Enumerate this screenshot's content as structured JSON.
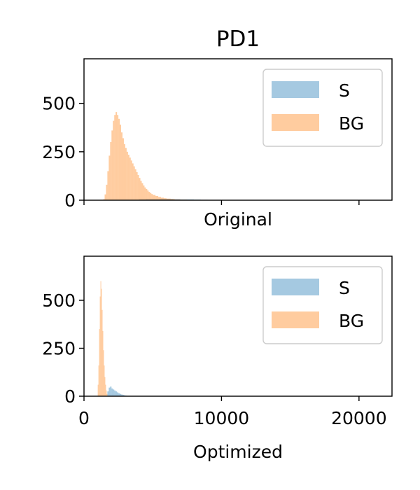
{
  "title": "PD1",
  "chart_data": [
    {
      "type": "histogram",
      "xlabel": "Original",
      "ylabel": "",
      "xlim": [
        0,
        22400
      ],
      "ylim": [
        0,
        730
      ],
      "yticks": [
        0,
        250,
        500
      ],
      "ytick_labels": [
        "0",
        "250",
        "500"
      ],
      "xticks": [
        0,
        10000,
        20000
      ],
      "xtick_labels": [
        "",
        "",
        ""
      ],
      "legend": {
        "position": "top-right",
        "entries": [
          "S",
          "BG"
        ]
      },
      "series": [
        {
          "name": "S",
          "color": "#1f77b4",
          "bins": [
            {
              "x": 4000,
              "y": 4
            },
            {
              "x": 4500,
              "y": 5
            },
            {
              "x": 5000,
              "y": 5
            },
            {
              "x": 5500,
              "y": 6
            },
            {
              "x": 6000,
              "y": 6
            },
            {
              "x": 6500,
              "y": 5
            },
            {
              "x": 7000,
              "y": 4
            },
            {
              "x": 7500,
              "y": 4
            },
            {
              "x": 8000,
              "y": 3
            },
            {
              "x": 8500,
              "y": 2
            },
            {
              "x": 9000,
              "y": 1
            }
          ]
        },
        {
          "name": "BG",
          "color": "#ff7f0e",
          "bins": [
            {
              "x": 1400,
              "y": 5
            },
            {
              "x": 1500,
              "y": 30
            },
            {
              "x": 1600,
              "y": 80
            },
            {
              "x": 1700,
              "y": 150
            },
            {
              "x": 1800,
              "y": 230
            },
            {
              "x": 1900,
              "y": 300
            },
            {
              "x": 2000,
              "y": 360
            },
            {
              "x": 2100,
              "y": 410
            },
            {
              "x": 2200,
              "y": 440
            },
            {
              "x": 2300,
              "y": 455
            },
            {
              "x": 2400,
              "y": 440
            },
            {
              "x": 2500,
              "y": 420
            },
            {
              "x": 2600,
              "y": 390
            },
            {
              "x": 2700,
              "y": 350
            },
            {
              "x": 2800,
              "y": 320
            },
            {
              "x": 2900,
              "y": 290
            },
            {
              "x": 3000,
              "y": 270
            },
            {
              "x": 3100,
              "y": 250
            },
            {
              "x": 3200,
              "y": 235
            },
            {
              "x": 3300,
              "y": 220
            },
            {
              "x": 3400,
              "y": 205
            },
            {
              "x": 3500,
              "y": 190
            },
            {
              "x": 3600,
              "y": 175
            },
            {
              "x": 3700,
              "y": 160
            },
            {
              "x": 3800,
              "y": 145
            },
            {
              "x": 3900,
              "y": 130
            },
            {
              "x": 4000,
              "y": 115
            },
            {
              "x": 4100,
              "y": 100
            },
            {
              "x": 4200,
              "y": 88
            },
            {
              "x": 4300,
              "y": 76
            },
            {
              "x": 4400,
              "y": 66
            },
            {
              "x": 4500,
              "y": 58
            },
            {
              "x": 4600,
              "y": 50
            },
            {
              "x": 4700,
              "y": 43
            },
            {
              "x": 4800,
              "y": 37
            },
            {
              "x": 4900,
              "y": 32
            },
            {
              "x": 5000,
              "y": 27
            },
            {
              "x": 5200,
              "y": 22
            },
            {
              "x": 5400,
              "y": 17
            },
            {
              "x": 5600,
              "y": 13
            },
            {
              "x": 5800,
              "y": 10
            },
            {
              "x": 6000,
              "y": 8
            },
            {
              "x": 6300,
              "y": 6
            },
            {
              "x": 6600,
              "y": 4
            },
            {
              "x": 7000,
              "y": 3
            },
            {
              "x": 7500,
              "y": 2
            },
            {
              "x": 8000,
              "y": 1
            }
          ]
        }
      ]
    },
    {
      "type": "histogram",
      "xlabel": "Optimized",
      "ylabel": "",
      "xlim": [
        0,
        22400
      ],
      "ylim": [
        0,
        730
      ],
      "yticks": [
        0,
        250,
        500
      ],
      "ytick_labels": [
        "0",
        "250",
        "500"
      ],
      "xticks": [
        0,
        10000,
        20000
      ],
      "xtick_labels": [
        "0",
        "10000",
        "20000"
      ],
      "legend": {
        "position": "top-right",
        "entries": [
          "S",
          "BG"
        ]
      },
      "series": [
        {
          "name": "S",
          "color": "#1f77b4",
          "bins": [
            {
              "x": 1700,
              "y": 25
            },
            {
              "x": 1800,
              "y": 45
            },
            {
              "x": 1900,
              "y": 50
            },
            {
              "x": 2000,
              "y": 40
            },
            {
              "x": 2100,
              "y": 35
            },
            {
              "x": 2200,
              "y": 30
            },
            {
              "x": 2300,
              "y": 25
            },
            {
              "x": 2400,
              "y": 20
            },
            {
              "x": 2500,
              "y": 15
            },
            {
              "x": 2600,
              "y": 12
            },
            {
              "x": 2700,
              "y": 9
            },
            {
              "x": 2800,
              "y": 7
            },
            {
              "x": 2900,
              "y": 5
            },
            {
              "x": 3000,
              "y": 3
            }
          ]
        },
        {
          "name": "BG",
          "color": "#ff7f0e",
          "bins": [
            {
              "x": 1000,
              "y": 60
            },
            {
              "x": 1050,
              "y": 160
            },
            {
              "x": 1100,
              "y": 350
            },
            {
              "x": 1150,
              "y": 520
            },
            {
              "x": 1200,
              "y": 600
            },
            {
              "x": 1250,
              "y": 560
            },
            {
              "x": 1300,
              "y": 450
            },
            {
              "x": 1350,
              "y": 340
            },
            {
              "x": 1400,
              "y": 240
            },
            {
              "x": 1450,
              "y": 160
            },
            {
              "x": 1500,
              "y": 100
            },
            {
              "x": 1550,
              "y": 60
            },
            {
              "x": 1600,
              "y": 30
            },
            {
              "x": 1650,
              "y": 12
            }
          ]
        }
      ]
    }
  ]
}
